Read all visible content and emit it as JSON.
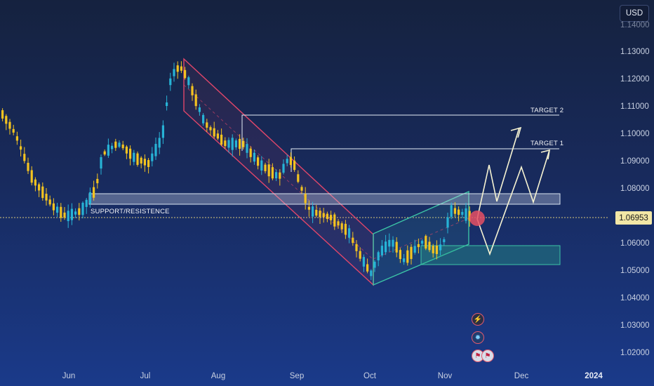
{
  "currency": {
    "label": "USD"
  },
  "last_price": {
    "value": "1.06953"
  },
  "price_axis": {
    "ticks": [
      "1.14000",
      "1.13000",
      "1.12000",
      "1.11000",
      "1.10000",
      "1.09000",
      "1.08000",
      "1.06000",
      "1.05000",
      "1.04000",
      "1.03000",
      "1.02000"
    ]
  },
  "time_axis": {
    "labels": [
      "Jun",
      "Jul",
      "Aug",
      "Sep",
      "Oct",
      "Nov",
      "Dec",
      "2024"
    ]
  },
  "annotations": {
    "support_resistance": "SUPPORT/RESISTENCE",
    "target_1": "TARGET 1",
    "target_2": "TARGET 2"
  },
  "colors": {
    "bullish": "#27b3d6",
    "bearish": "#f3c320",
    "descending_channel": "#e0466a",
    "ascending_channel": "#3cc4a6",
    "zone_fill": "#9fb2d8",
    "target_line": "#e6eef7",
    "projection": "#f6f3d2",
    "price_tag": "#f2e7a6"
  },
  "event_icons": [
    "lightning-icon",
    "settings-icon",
    "flag-icon"
  ]
}
